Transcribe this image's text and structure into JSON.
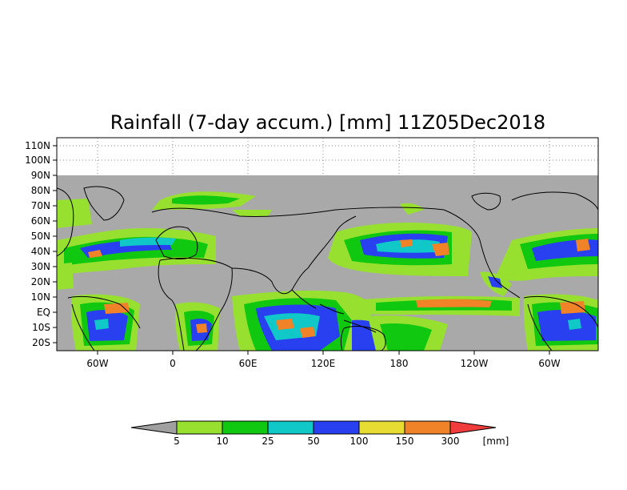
{
  "title": "Rainfall (7-day accum.) [mm] 11Z05Dec2018",
  "lat_labels": [
    "110N",
    "100N",
    "90N",
    "80N",
    "70N",
    "60N",
    "50N",
    "40N",
    "30N",
    "20N",
    "10N",
    "EQ",
    "10S",
    "20S"
  ],
  "lon_labels": [
    "60W",
    "0",
    "60E",
    "120E",
    "180",
    "120W",
    "60W"
  ],
  "colorbar": {
    "levels": [
      "5",
      "10",
      "25",
      "50",
      "100",
      "150",
      "300"
    ],
    "unit": "[mm]",
    "colors": [
      "#a0a0a0",
      "#98e030",
      "#10c810",
      "#10c8c8",
      "#2840f0",
      "#e6dc32",
      "#f08228",
      "#f03c3c"
    ]
  },
  "colors": {
    "no_rain": "#a9a9a9",
    "background": "#ffffff",
    "coastline": "#000000"
  }
}
